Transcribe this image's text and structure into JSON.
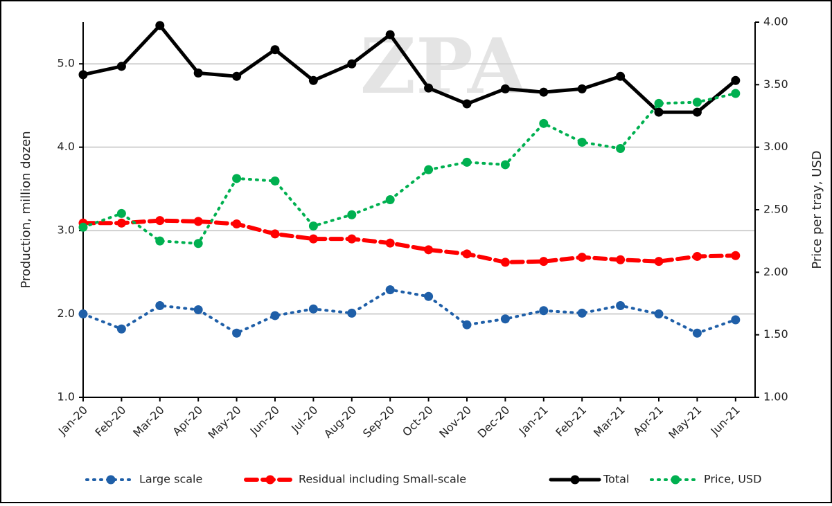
{
  "chart_data": {
    "type": "line",
    "watermark": "ZPA",
    "categories": [
      "Jan-20",
      "Feb-20",
      "Mar-20",
      "Apr-20",
      "May-20",
      "Jun-20",
      "Jul-20",
      "Aug-20",
      "Sep-20",
      "Oct-20",
      "Nov-20",
      "Dec-20",
      "Jan-21",
      "Feb-21",
      "Mar-21",
      "Apr-21",
      "May-21",
      "Jun-21"
    ],
    "y_label": "Production, million dozen",
    "y2_label": "Price per tray, USD",
    "ylim": [
      1,
      5.5
    ],
    "yticks": [
      {
        "value": 1,
        "label": "1.0"
      },
      {
        "value": 2,
        "label": "2.0"
      },
      {
        "value": 3,
        "label": "3.0"
      },
      {
        "value": 4,
        "label": "4.0"
      },
      {
        "value": 5,
        "label": "5.0"
      }
    ],
    "y2lim": [
      1,
      4
    ],
    "y2ticks": [
      {
        "value": 1,
        "label": "1.00"
      },
      {
        "value": 1.5,
        "label": "1.50"
      },
      {
        "value": 2,
        "label": "2.00"
      },
      {
        "value": 2.5,
        "label": "2.50"
      },
      {
        "value": 3,
        "label": "3.00"
      },
      {
        "value": 3.5,
        "label": "3.50"
      },
      {
        "value": 4,
        "label": "4.00"
      }
    ],
    "grid": true,
    "series": [
      {
        "name": "Large scale",
        "color": "#1f5fa8",
        "line_style": "dotted",
        "values": [
          2.0,
          1.82,
          2.1,
          2.05,
          1.77,
          1.98,
          2.06,
          2.01,
          2.29,
          2.21,
          1.87,
          1.94,
          2.04,
          2.01,
          2.1,
          2.0,
          1.77,
          1.93
        ]
      },
      {
        "name": "Residual including Small-scale",
        "color": "#ff0000",
        "line_style": "dashed",
        "values": [
          3.09,
          3.09,
          3.12,
          3.11,
          3.08,
          2.96,
          2.9,
          2.9,
          2.85,
          2.77,
          2.72,
          2.62,
          2.63,
          2.68,
          2.65,
          2.63,
          2.69,
          2.7
        ]
      },
      {
        "name": "Total",
        "color": "#000000",
        "line_style": "solid",
        "values": [
          4.87,
          4.97,
          5.46,
          4.89,
          4.85,
          5.17,
          4.8,
          5.0,
          5.35,
          4.71,
          4.52,
          4.7,
          4.66,
          4.7,
          4.85,
          4.42,
          4.42,
          4.8
        ]
      },
      {
        "name": "Price, USD",
        "color": "#00b050",
        "line_style": "dotted",
        "axis": "y2",
        "values": [
          2.36,
          2.47,
          2.25,
          2.23,
          2.75,
          2.73,
          2.37,
          2.46,
          2.58,
          2.82,
          2.88,
          2.86,
          3.19,
          3.04,
          2.99,
          3.35,
          3.36,
          3.43
        ]
      }
    ]
  }
}
